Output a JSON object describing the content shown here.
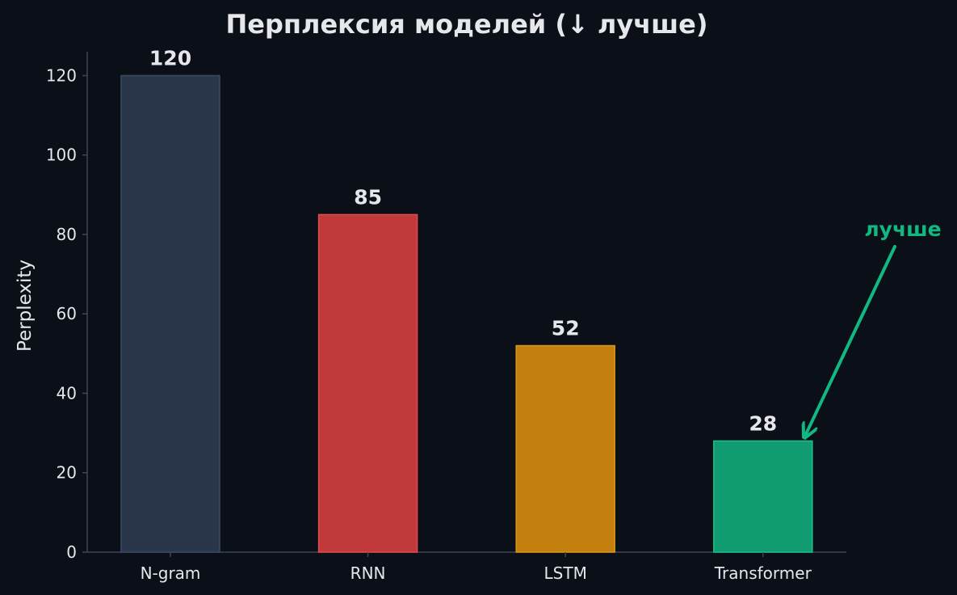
{
  "chart_data": {
    "type": "bar",
    "title": "Перплексия моделей (↓ лучше)",
    "xlabel": "",
    "ylabel": "Perplexity",
    "categories": [
      "N-gram",
      "RNN",
      "LSTM",
      "Transformer"
    ],
    "values": [
      120,
      85,
      52,
      28
    ],
    "value_labels": [
      "120",
      "85",
      "52",
      "28"
    ],
    "ylim": [
      0,
      126
    ],
    "yticks": [
      0,
      20,
      40,
      60,
      80,
      100,
      120
    ],
    "bar_colors": [
      "#2a3649",
      "#c2393c",
      "#c4800f",
      "#119b71"
    ],
    "bar_edge_colors": [
      "#3a4a62",
      "#e04b4e",
      "#dd9413",
      "#1cbf8a"
    ],
    "grid": false,
    "annotation": {
      "text": "лучше",
      "target_category": "Transformer",
      "color": "#10b981"
    }
  },
  "colors": {
    "background": "#0b0f18",
    "axis": "#3d4657",
    "text": "#e5e7eb"
  }
}
